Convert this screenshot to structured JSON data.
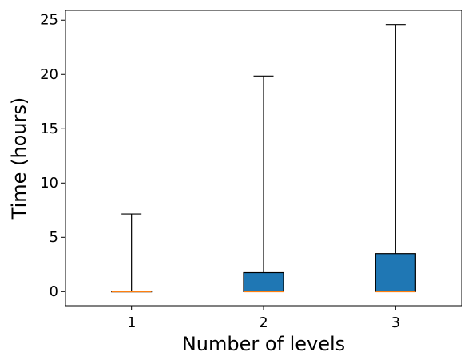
{
  "chart_data": {
    "type": "boxplot",
    "xlabel": "Number of levels",
    "ylabel": "Time (hours)",
    "categories": [
      "1",
      "2",
      "3"
    ],
    "ylim": [
      -1.3,
      25.9
    ],
    "yticks": [
      0,
      5,
      10,
      15,
      20,
      25
    ],
    "grid": false,
    "legend": "none",
    "boxes": [
      {
        "category": "1",
        "whisker_low": 0.0,
        "q1": 0.0,
        "median": 0.0,
        "q3": 0.05,
        "whisker_high": 7.15
      },
      {
        "category": "2",
        "whisker_low": 0.0,
        "q1": 0.0,
        "median": 0.0,
        "q3": 1.75,
        "whisker_high": 19.85
      },
      {
        "category": "3",
        "whisker_low": 0.0,
        "q1": 0.0,
        "median": 0.0,
        "q3": 3.5,
        "whisker_high": 24.6
      }
    ],
    "colors": {
      "box_fill": "#1f77b4",
      "median": "#ff7f0e",
      "line": "#000000"
    }
  }
}
